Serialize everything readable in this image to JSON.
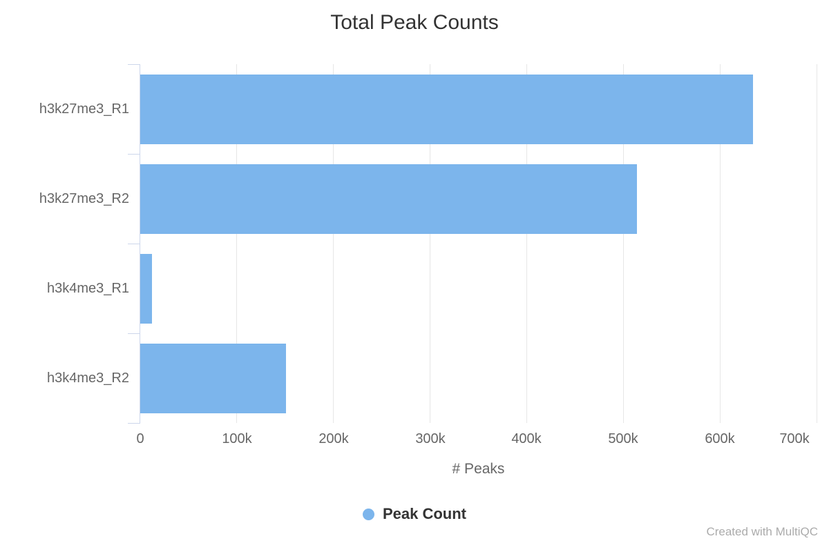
{
  "title": "Total Peak Counts",
  "chart_data": {
    "type": "bar",
    "orientation": "horizontal",
    "title": "Total Peak Counts",
    "categories": [
      "h3k27me3_R1",
      "h3k27me3_R2",
      "h3k4me3_R1",
      "h3k4me3_R2"
    ],
    "series": [
      {
        "name": "Peak Count",
        "color": "#7cb5ec",
        "values": [
          634000,
          514000,
          12000,
          151000
        ]
      }
    ],
    "xlabel": "# Peaks",
    "ylabel": "",
    "xlim": [
      0,
      700000
    ],
    "x_tick_labels": [
      "0",
      "100k",
      "200k",
      "300k",
      "400k",
      "500k",
      "600k",
      "700k"
    ],
    "grid": "vertical-only",
    "legend_position": "bottom-center"
  },
  "legend": {
    "items": [
      {
        "label": "Peak Count",
        "color": "#7cb5ec"
      }
    ]
  },
  "watermark": "Created with MultiQC",
  "colors": {
    "bar": "#7cb5ec",
    "axis_line": "#ccd6eb",
    "gridline": "#e6e6e6",
    "title_text": "#333333",
    "axis_text": "#666666",
    "legend_text": "#333333",
    "watermark_text": "#ababab"
  }
}
